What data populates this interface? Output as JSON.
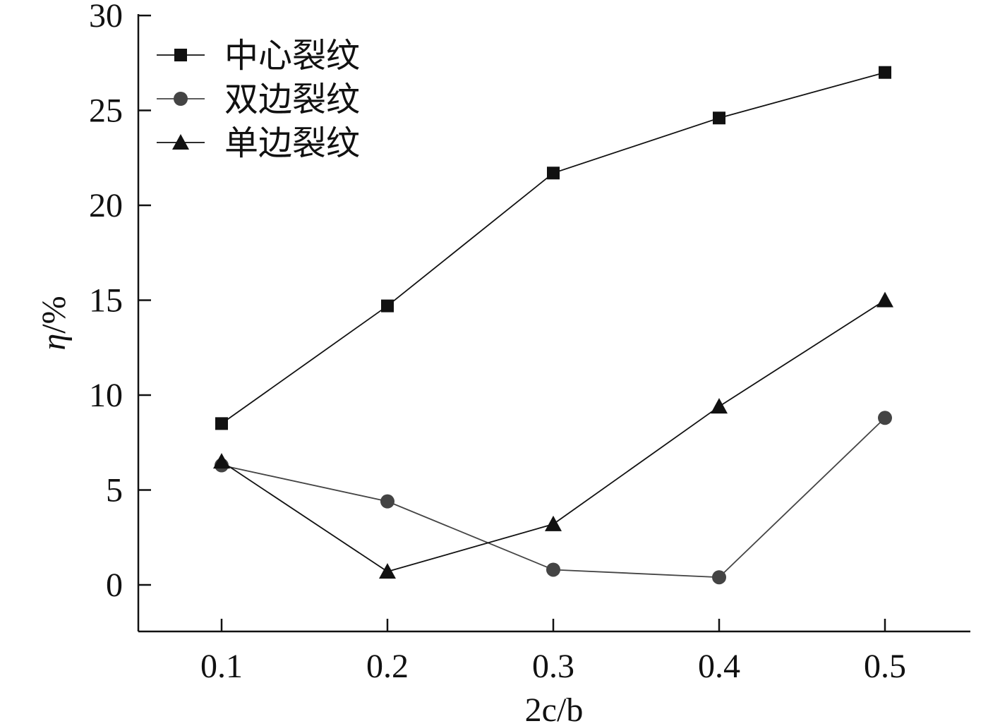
{
  "chart_data": {
    "type": "line",
    "x": [
      0.1,
      0.2,
      0.3,
      0.4,
      0.5
    ],
    "x_tick_labels": [
      "0.1",
      "0.2",
      "0.3",
      "0.4",
      "0.5"
    ],
    "y_ticks": [
      0,
      5,
      10,
      15,
      20,
      25,
      30
    ],
    "y_tick_labels": [
      "0",
      "5",
      "10",
      "15",
      "20",
      "25",
      "30"
    ],
    "xlim": [
      0.05,
      0.55
    ],
    "ylim": [
      -2.5,
      30
    ],
    "title": "",
    "xlabel": "2c/b",
    "ylabel_symbol": "η",
    "ylabel_unit": "/%",
    "grid": false,
    "legend_position": "top-left",
    "series": [
      {
        "name": "中心裂纹",
        "marker": "square",
        "color": "#111111",
        "values": [
          8.5,
          14.7,
          21.7,
          24.6,
          27.0
        ]
      },
      {
        "name": "双边裂纹",
        "marker": "circle",
        "color": "#444444",
        "values": [
          6.3,
          4.4,
          0.8,
          0.4,
          8.8
        ]
      },
      {
        "name": "单边裂纹",
        "marker": "triangle",
        "color": "#111111",
        "values": [
          6.5,
          0.7,
          3.2,
          9.4,
          15.0
        ]
      }
    ]
  }
}
